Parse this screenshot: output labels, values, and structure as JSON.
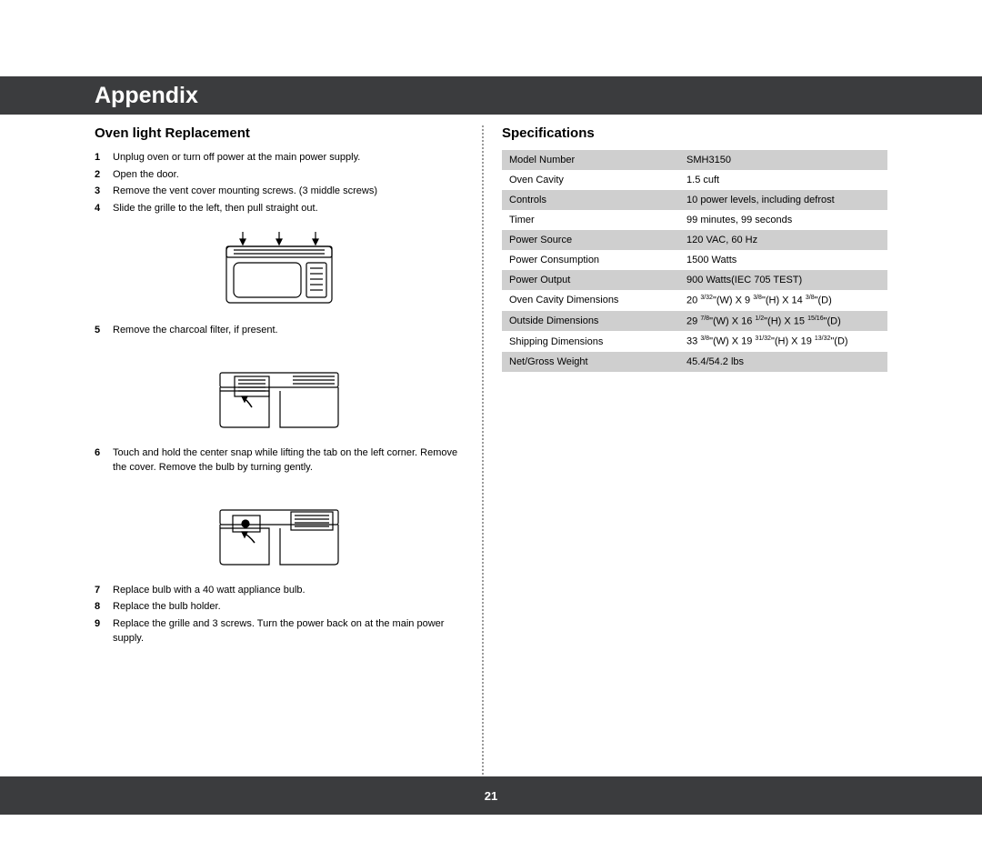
{
  "header": {
    "title": "Appendix"
  },
  "footer": {
    "page": "21"
  },
  "left": {
    "heading": "Oven light Replacement",
    "steps": [
      {
        "n": "1",
        "t": "Unplug oven or turn off power at the main power supply."
      },
      {
        "n": "2",
        "t": "Open the door."
      },
      {
        "n": "3",
        "t": "Remove the vent cover mounting screws. (3 middle screws)"
      },
      {
        "n": "4",
        "t": "Slide the grille to the left, then pull straight out."
      },
      {
        "n": "5",
        "t": "Remove the charcoal filter, if present."
      },
      {
        "n": "6",
        "t": "Touch and hold the center snap while lifting the tab on the left corner. Remove the cover. Remove the bulb by turning gently."
      },
      {
        "n": "7",
        "t": "Replace bulb with a 40 watt appliance bulb."
      },
      {
        "n": "8",
        "t": "Replace the bulb holder."
      },
      {
        "n": "9",
        "t": "Replace the grille and 3 screws. Turn the power back on at the main power supply."
      }
    ]
  },
  "right": {
    "heading": "Specifications",
    "rows": [
      {
        "label": "Model Number",
        "value": "SMH3150"
      },
      {
        "label": "Oven Cavity",
        "value": "1.5 cuft"
      },
      {
        "label": "Controls",
        "value": "10 power levels, including defrost"
      },
      {
        "label": "Timer",
        "value": "99 minutes, 99 seconds"
      },
      {
        "label": "Power Source",
        "value": "120 VAC, 60 Hz"
      },
      {
        "label": "Power Consumption",
        "value": "1500 Watts"
      },
      {
        "label": "Power Output",
        "value": "900 Watts(IEC 705 TEST)"
      },
      {
        "label": "Oven Cavity Dimensions",
        "value_html": "20 <sup class='frac'>3/32</sup>\"(W) X 9 <sup class='frac'>3/8</sup>\"(H) X 14 <sup class='frac'>3/8</sup>\"(D)"
      },
      {
        "label": "Outside Dimensions",
        "value_html": "29 <sup class='frac'>7/8</sup>\"(W) X 16 <sup class='frac'>1/2</sup>\"(H) X 15 <sup class='frac'>15/16</sup>\"(D)"
      },
      {
        "label": "Shipping Dimensions",
        "value_html": "33 <sup class='frac'>3/8</sup>\"(W) X 19 <sup class='frac'>31/32</sup>\"(H) X 19 <sup class='frac'>13/32</sup>\"(D)"
      },
      {
        "label": "Net/Gross Weight",
        "value": "45.4/54.2 lbs"
      }
    ]
  }
}
